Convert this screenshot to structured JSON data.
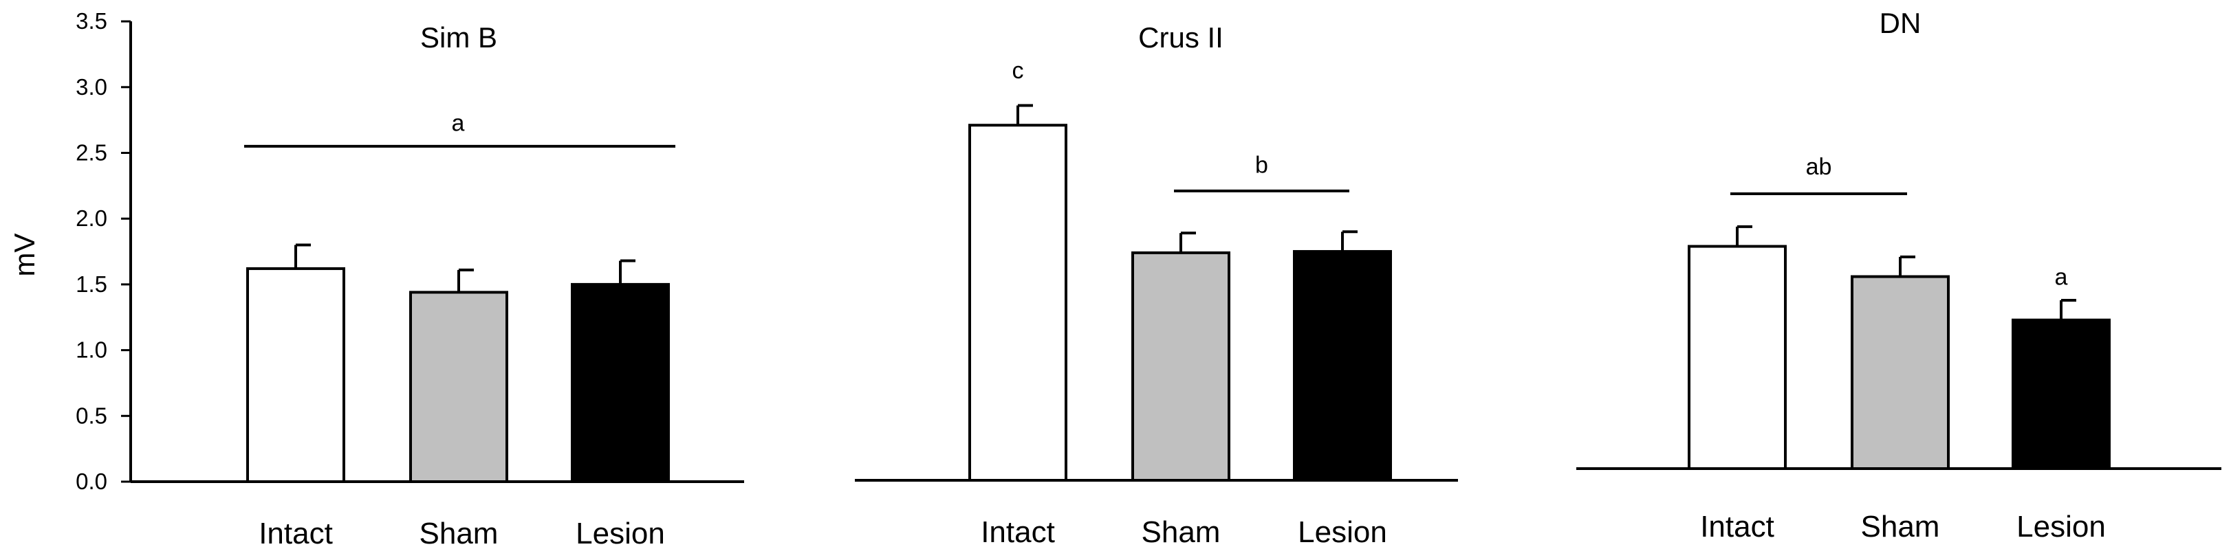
{
  "chart_data": [
    {
      "type": "bar",
      "title": "Sim B",
      "ylabel": "mV",
      "ylim": [
        0,
        3.5
      ],
      "yticks": [
        "0.0",
        "0.5",
        "1.0",
        "1.5",
        "2.0",
        "2.5",
        "3.0",
        "3.5"
      ],
      "categories": [
        "Intact",
        "Sham",
        "Lesion"
      ],
      "values": [
        1.62,
        1.44,
        1.5
      ],
      "errors": [
        0.18,
        0.17,
        0.18
      ],
      "bar_colors": [
        "#ffffff",
        "#c0c0c0",
        "#000000"
      ],
      "annotations": [
        {
          "text": "a",
          "span": [
            0,
            2
          ],
          "y": 2.55,
          "label_y": 2.73
        }
      ],
      "show_y_axis": true
    },
    {
      "type": "bar",
      "title": "Crus II",
      "ylabel": "",
      "ylim": [
        0,
        3.5
      ],
      "categories": [
        "Intact",
        "Sham",
        "Lesion"
      ],
      "values": [
        2.7,
        1.73,
        1.74
      ],
      "errors": [
        0.15,
        0.15,
        0.15
      ],
      "bar_colors": [
        "#ffffff",
        "#c0c0c0",
        "#000000"
      ],
      "annotations": [
        {
          "text": "c",
          "span": [
            0,
            0
          ],
          "y": null,
          "label_y": 3.12
        },
        {
          "text": "b",
          "span": [
            1,
            2
          ],
          "y": 2.2,
          "label_y": 2.4
        }
      ],
      "show_y_axis": false
    },
    {
      "type": "bar",
      "title": "DN",
      "ylabel": "",
      "ylim": [
        0,
        3.5
      ],
      "categories": [
        "Intact",
        "Sham",
        "Lesion"
      ],
      "values": [
        1.69,
        1.46,
        1.13
      ],
      "errors": [
        0.15,
        0.15,
        0.15
      ],
      "bar_colors": [
        "#ffffff",
        "#c0c0c0",
        "#000000"
      ],
      "annotations": [
        {
          "text": "ab",
          "span": [
            0,
            1
          ],
          "y": 2.09,
          "label_y": 2.3
        },
        {
          "text": "a",
          "span": [
            2,
            2
          ],
          "y": null,
          "label_y": 1.46
        }
      ],
      "show_y_axis": false
    }
  ]
}
